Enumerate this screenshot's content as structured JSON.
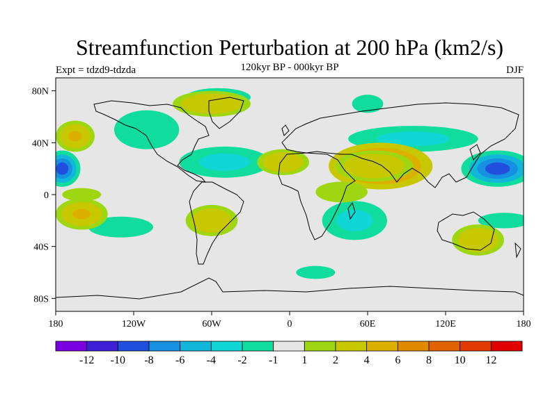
{
  "title": "Streamfunction Perturbation at 200 hPa (km2/s)",
  "subtitle": "120kyr BP - 000kyr BP",
  "left_label": "Expt = tdzd9-tdzda",
  "right_label": "DJF",
  "map": {
    "projection": "cylindrical-equidistant",
    "lon_range": [
      -180,
      180
    ],
    "lat_range": [
      -90,
      90
    ],
    "y_ticks": [
      {
        "lat": 80,
        "label": "80N"
      },
      {
        "lat": 40,
        "label": "40N"
      },
      {
        "lat": 0,
        "label": "0"
      },
      {
        "lat": -40,
        "label": "40S"
      },
      {
        "lat": -80,
        "label": "80S"
      }
    ],
    "x_ticks": [
      {
        "lon": -180,
        "label": "180"
      },
      {
        "lon": -120,
        "label": "120W"
      },
      {
        "lon": -60,
        "label": "60W"
      },
      {
        "lon": 0,
        "label": "0"
      },
      {
        "lon": 60,
        "label": "60E"
      },
      {
        "lon": 120,
        "label": "120E"
      },
      {
        "lon": 180,
        "label": "180"
      }
    ],
    "background_color": "#e6e6e6",
    "fields": [
      {
        "lon": 160,
        "lat": 20,
        "rx": 28,
        "ry": 14,
        "level": -9
      },
      {
        "lon": -175,
        "lat": 20,
        "rx": 14,
        "ry": 14,
        "level": -9
      },
      {
        "lon": 95,
        "lat": 43,
        "rx": 50,
        "ry": 10,
        "level": -4
      },
      {
        "lon": -50,
        "lat": 25,
        "rx": 35,
        "ry": 12,
        "level": -4
      },
      {
        "lon": 50,
        "lat": -20,
        "rx": 25,
        "ry": 15,
        "level": -4
      },
      {
        "lon": -130,
        "lat": -25,
        "rx": 25,
        "ry": 8,
        "level": -2
      },
      {
        "lon": -110,
        "lat": 50,
        "rx": 25,
        "ry": 15,
        "level": -2
      },
      {
        "lon": -55,
        "lat": 75,
        "rx": 25,
        "ry": 7,
        "level": -2
      },
      {
        "lon": 60,
        "lat": 70,
        "rx": 12,
        "ry": 7,
        "level": -2
      },
      {
        "lon": 165,
        "lat": -20,
        "rx": 20,
        "ry": 6,
        "level": -2
      },
      {
        "lon": 20,
        "lat": -60,
        "rx": 15,
        "ry": 5,
        "level": -2
      },
      {
        "lon": 70,
        "lat": 22,
        "rx": 40,
        "ry": 18,
        "level": 7
      },
      {
        "lon": 65,
        "lat": 22,
        "rx": 30,
        "ry": 12,
        "level": 3
      },
      {
        "lon": -5,
        "lat": 25,
        "rx": 20,
        "ry": 10,
        "level": 2
      },
      {
        "lon": 145,
        "lat": -35,
        "rx": 20,
        "ry": 12,
        "level": 3
      },
      {
        "lon": -160,
        "lat": -15,
        "rx": 20,
        "ry": 12,
        "level": 4
      },
      {
        "lon": -165,
        "lat": 45,
        "rx": 15,
        "ry": 12,
        "level": 4
      },
      {
        "lon": -60,
        "lat": 70,
        "rx": 30,
        "ry": 10,
        "level": 2
      },
      {
        "lon": -60,
        "lat": -20,
        "rx": 20,
        "ry": 12,
        "level": 2
      },
      {
        "lon": 40,
        "lat": 2,
        "rx": 20,
        "ry": 8,
        "level": 1
      },
      {
        "lon": -160,
        "lat": 0,
        "rx": 15,
        "ry": 5,
        "level": 1
      }
    ]
  },
  "colorbar": {
    "colors": [
      "#7a00e0",
      "#3f1ed8",
      "#1f4fdc",
      "#1690e0",
      "#12b6d8",
      "#10d6d6",
      "#10dc9e",
      "#e6e6e6",
      "#9fd612",
      "#c8c800",
      "#dcb000",
      "#e08a00",
      "#e06200",
      "#e03a00",
      "#e00000"
    ],
    "labels": [
      {
        "after_box": 1,
        "text": "-12"
      },
      {
        "after_box": 2,
        "text": "-10"
      },
      {
        "after_box": 3,
        "text": "-8"
      },
      {
        "after_box": 4,
        "text": "-6"
      },
      {
        "after_box": 5,
        "text": "-4"
      },
      {
        "after_box": 6,
        "text": "-2"
      },
      {
        "after_box": 7,
        "text": "-1"
      },
      {
        "after_box": 8,
        "text": "1"
      },
      {
        "after_box": 9,
        "text": "2"
      },
      {
        "after_box": 10,
        "text": "4"
      },
      {
        "after_box": 11,
        "text": "6"
      },
      {
        "after_box": 12,
        "text": "8"
      },
      {
        "after_box": 13,
        "text": "10"
      },
      {
        "after_box": 14,
        "text": "12"
      }
    ]
  }
}
